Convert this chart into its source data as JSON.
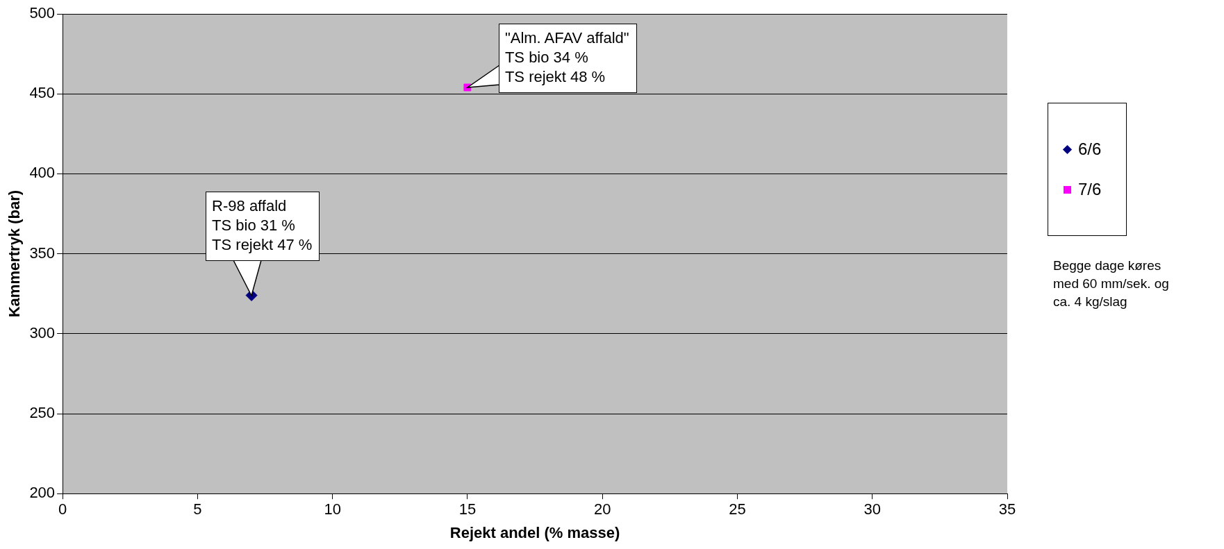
{
  "chart_data": {
    "type": "scatter",
    "xlabel": "Rejekt andel (% masse)",
    "ylabel": "Kammertryk (bar)",
    "series": [
      {
        "name": "6/6",
        "color": "#000080",
        "marker": "diamond",
        "x": [
          7
        ],
        "values": [
          324
        ]
      },
      {
        "name": "7/6",
        "color": "#ff00ff",
        "marker": "square",
        "x": [
          15
        ],
        "values": [
          454
        ]
      }
    ],
    "xlim": [
      0,
      35
    ],
    "xticks": [
      0,
      5,
      10,
      15,
      20,
      25,
      30,
      35
    ],
    "ylim": [
      200,
      500
    ],
    "yticks": [
      200,
      250,
      300,
      350,
      400,
      450,
      500
    ],
    "grid": "y",
    "legend": "right",
    "annotations": [
      {
        "text": "R-98 affald\nTS bio 31 %\nTS rejekt 47 %",
        "x": 7,
        "y": 324
      },
      {
        "text": "\"Alm. AFAV affald\"\nTS bio 34 %\nTS rejekt 48 %",
        "x": 15,
        "y": 454
      },
      "Begge dage køres\nmed 60 mm/sek. og\nca. 4 kg/slag"
    ]
  }
}
